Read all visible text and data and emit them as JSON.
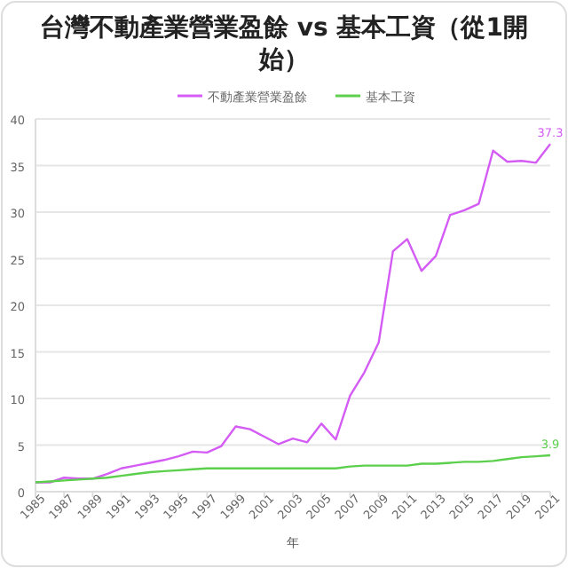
{
  "chart_data": {
    "type": "line",
    "title": "台灣不動產業營業盈餘 vs 基本工資（從1開始）",
    "xlabel": "年",
    "x": [
      1985,
      1986,
      1987,
      1988,
      1989,
      1990,
      1991,
      1992,
      1993,
      1994,
      1995,
      1996,
      1997,
      1998,
      1999,
      2000,
      2001,
      2002,
      2003,
      2004,
      2005,
      2006,
      2007,
      2008,
      2009,
      2010,
      2011,
      2012,
      2013,
      2014,
      2015,
      2016,
      2017,
      2018,
      2019,
      2020,
      2021
    ],
    "series": [
      {
        "name": "不動產業營業盈餘",
        "color": "#d45cf5",
        "values": [
          1.0,
          1.0,
          1.5,
          1.4,
          1.4,
          1.9,
          2.5,
          2.8,
          3.1,
          3.4,
          3.8,
          4.3,
          4.2,
          4.9,
          7.0,
          6.7,
          5.9,
          5.1,
          5.7,
          5.3,
          7.3,
          5.6,
          10.3,
          12.8,
          16.0,
          25.8,
          27.1,
          23.7,
          25.3,
          29.7,
          30.2,
          30.9,
          36.6,
          35.4,
          35.5,
          35.3,
          37.3
        ]
      },
      {
        "name": "基本工資",
        "color": "#5ccf4c",
        "values": [
          1.0,
          1.1,
          1.2,
          1.3,
          1.4,
          1.5,
          1.7,
          1.9,
          2.1,
          2.2,
          2.3,
          2.4,
          2.5,
          2.5,
          2.5,
          2.5,
          2.5,
          2.5,
          2.5,
          2.5,
          2.5,
          2.5,
          2.7,
          2.8,
          2.8,
          2.8,
          2.8,
          3.0,
          3.0,
          3.1,
          3.2,
          3.2,
          3.3,
          3.5,
          3.7,
          3.8,
          3.9
        ]
      }
    ],
    "annotations": [
      {
        "text": "37.3",
        "x": 2021,
        "y": 37.3
      },
      {
        "text": "3.9",
        "x": 2021,
        "y": 3.9
      }
    ],
    "xlim": [
      1985,
      2021
    ],
    "xticks": [
      1985,
      1987,
      1989,
      1991,
      1993,
      1995,
      1997,
      1999,
      2001,
      2003,
      2005,
      2007,
      2009,
      2011,
      2013,
      2015,
      2017,
      2019,
      2021
    ],
    "ylim": [
      0,
      40
    ],
    "yticks": [
      0,
      5,
      10,
      15,
      20,
      25,
      30,
      35,
      40
    ],
    "grid": "y",
    "legend": "top",
    "marker": "none",
    "line_style": "solid"
  }
}
